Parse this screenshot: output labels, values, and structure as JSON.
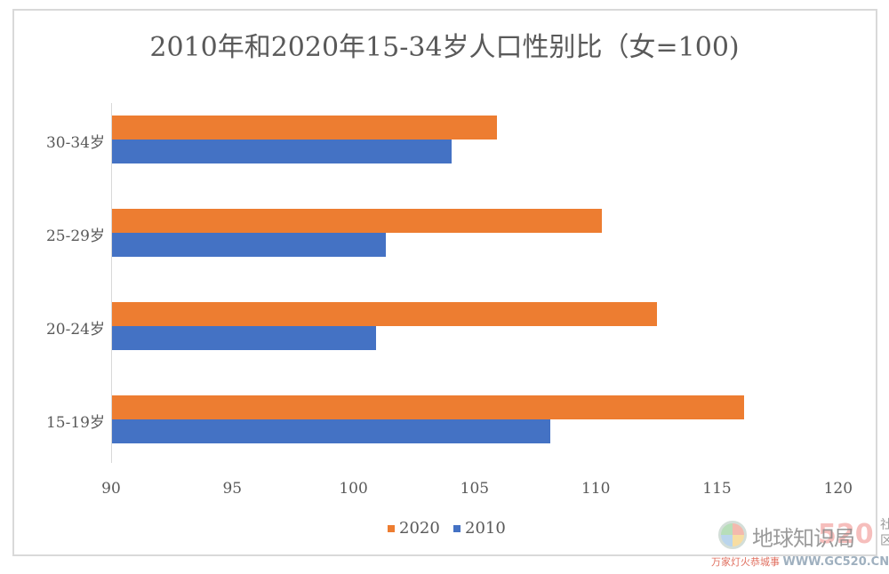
{
  "chart_data": {
    "type": "bar",
    "orientation": "horizontal",
    "title": "2010年和2020年15-34岁人口性别比（女=100)",
    "categories": [
      "15-19岁",
      "20-24岁",
      "25-29岁",
      "30-34岁"
    ],
    "series": [
      {
        "name": "2020",
        "color": "#ED7D31",
        "values": [
          116.1,
          112.5,
          110.2,
          105.9
        ]
      },
      {
        "name": "2010",
        "color": "#4472C4",
        "values": [
          108.1,
          100.9,
          101.3,
          104.0
        ]
      }
    ],
    "xlabel": "",
    "ylabel": "",
    "xlim": [
      90,
      120
    ],
    "xticks": [
      "90",
      "95",
      "100",
      "105",
      "110",
      "115",
      "120"
    ],
    "grid": false,
    "legend_position": "bottom"
  },
  "legend": {
    "items": [
      {
        "label": "2020",
        "color": "#ED7D31"
      },
      {
        "label": "2010",
        "color": "#4472C4"
      }
    ]
  },
  "watermark": {
    "name": "地球知识局",
    "badge": "520",
    "side": "社区",
    "slogan": "万家灯火恭城事",
    "url": "WWW.GC520.CN"
  }
}
